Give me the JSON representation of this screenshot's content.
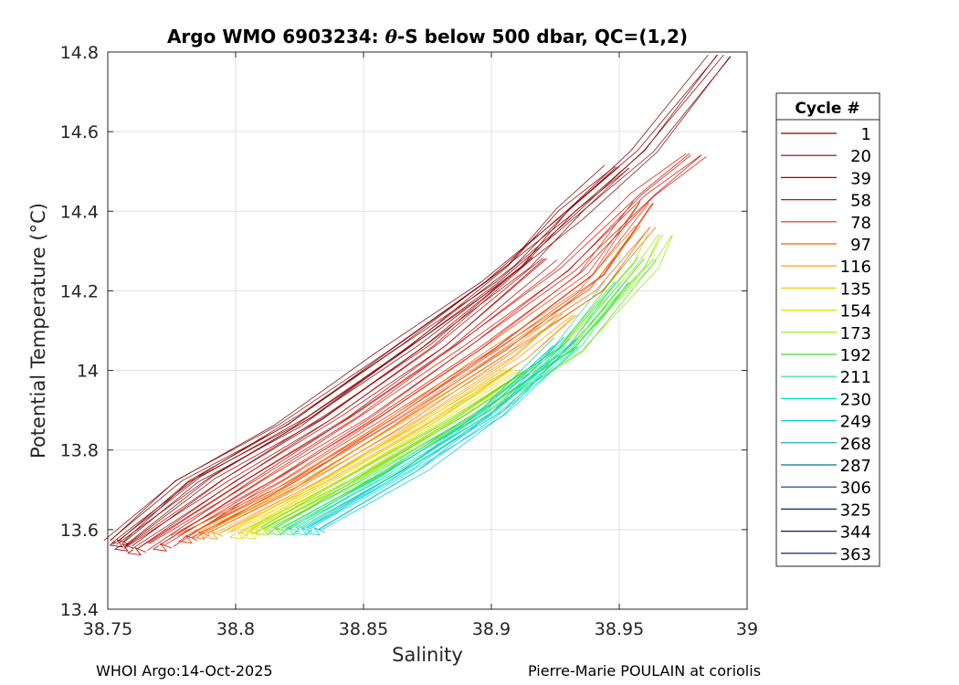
{
  "chart_data": {
    "type": "line",
    "title_prefix": "Argo WMO 6903234: ",
    "title_theta": "θ",
    "title_suffix": "-S below 500 dbar,  QC=(1,2)",
    "xlabel": "Salinity",
    "ylabel": "Potential Temperature (°C)",
    "xlim": [
      38.75,
      39
    ],
    "ylim": [
      13.4,
      14.8
    ],
    "xticks": [
      38.75,
      38.8,
      38.85,
      38.9,
      38.95,
      39
    ],
    "xtick_labels": [
      "38.75",
      "38.8",
      "38.85",
      "38.9",
      "38.95",
      "39"
    ],
    "yticks": [
      13.4,
      13.6,
      13.8,
      14,
      14.2,
      14.4,
      14.6,
      14.8
    ],
    "ytick_labels": [
      "13.4",
      "13.6",
      "13.8",
      "14",
      "14.2",
      "14.4",
      "14.6",
      "14.8"
    ],
    "grid": true,
    "legend_title": "Cycle #",
    "legend_position": "right",
    "series": [
      {
        "name": "1",
        "color": "#800000",
        "points": [
          [
            38.753,
            13.57
          ],
          [
            38.78,
            13.72
          ],
          [
            38.82,
            13.86
          ],
          [
            38.86,
            14.04
          ],
          [
            38.9,
            14.22
          ],
          [
            38.93,
            14.38
          ],
          [
            38.96,
            14.55
          ],
          [
            38.99,
            14.79
          ]
        ]
      },
      {
        "name": "20",
        "color": "#8c0000",
        "points": [
          [
            38.755,
            13.56
          ],
          [
            38.79,
            13.73
          ],
          [
            38.83,
            13.88
          ],
          [
            38.87,
            14.06
          ],
          [
            38.91,
            14.26
          ],
          [
            38.93,
            14.4
          ],
          [
            38.95,
            14.51
          ]
        ]
      },
      {
        "name": "39",
        "color": "#aa0000",
        "points": [
          [
            38.76,
            13.55
          ],
          [
            38.8,
            13.72
          ],
          [
            38.84,
            13.88
          ],
          [
            38.88,
            14.06
          ],
          [
            38.92,
            14.28
          ]
        ]
      },
      {
        "name": "58",
        "color": "#cc1000",
        "points": [
          [
            38.77,
            13.56
          ],
          [
            38.81,
            13.72
          ],
          [
            38.85,
            13.88
          ],
          [
            38.89,
            14.06
          ],
          [
            38.93,
            14.25
          ],
          [
            38.96,
            14.44
          ],
          [
            38.98,
            14.54
          ]
        ]
      },
      {
        "name": "78",
        "color": "#e03000",
        "points": [
          [
            38.78,
            13.58
          ],
          [
            38.82,
            13.72
          ],
          [
            38.86,
            13.88
          ],
          [
            38.9,
            14.05
          ],
          [
            38.94,
            14.24
          ],
          [
            38.96,
            14.42
          ]
        ]
      },
      {
        "name": "97",
        "color": "#ee6600",
        "points": [
          [
            38.785,
            13.59
          ],
          [
            38.82,
            13.7
          ],
          [
            38.86,
            13.86
          ],
          [
            38.9,
            14.03
          ],
          [
            38.94,
            14.2
          ],
          [
            38.96,
            14.36
          ]
        ]
      },
      {
        "name": "116",
        "color": "#f59a00",
        "points": [
          [
            38.79,
            13.59
          ],
          [
            38.83,
            13.72
          ],
          [
            38.87,
            13.87
          ],
          [
            38.91,
            14.03
          ],
          [
            38.93,
            14.14
          ]
        ]
      },
      {
        "name": "135",
        "color": "#f5cc00",
        "points": [
          [
            38.8,
            13.59
          ],
          [
            38.84,
            13.73
          ],
          [
            38.88,
            13.88
          ],
          [
            38.91,
            14.0
          ]
        ]
      },
      {
        "name": "154",
        "color": "#d6e600",
        "points": [
          [
            38.805,
            13.59
          ],
          [
            38.84,
            13.72
          ],
          [
            38.88,
            13.87
          ],
          [
            38.91,
            14.0
          ]
        ]
      },
      {
        "name": "173",
        "color": "#99e600",
        "points": [
          [
            38.81,
            13.6
          ],
          [
            38.85,
            13.73
          ],
          [
            38.89,
            13.88
          ],
          [
            38.93,
            14.05
          ],
          [
            38.96,
            14.26
          ],
          [
            38.967,
            14.34
          ]
        ]
      },
      {
        "name": "192",
        "color": "#44e033",
        "points": [
          [
            38.815,
            13.6
          ],
          [
            38.85,
            13.73
          ],
          [
            38.89,
            13.88
          ],
          [
            38.93,
            14.05
          ],
          [
            38.96,
            14.28
          ]
        ]
      },
      {
        "name": "211",
        "color": "#22e08a",
        "points": [
          [
            38.82,
            13.6
          ],
          [
            38.86,
            13.74
          ],
          [
            38.9,
            13.9
          ],
          [
            38.93,
            14.06
          ],
          [
            38.95,
            14.22
          ]
        ]
      },
      {
        "name": "230",
        "color": "#00e0cc",
        "points": [
          [
            38.825,
            13.6
          ],
          [
            38.86,
            13.73
          ],
          [
            38.9,
            13.89
          ],
          [
            38.93,
            14.06
          ]
        ]
      },
      {
        "name": "249",
        "color": "#00c8e0",
        "points": [
          [
            38.83,
            13.6
          ],
          [
            38.87,
            13.75
          ],
          [
            38.9,
            13.89
          ],
          [
            38.93,
            14.08
          ]
        ]
      },
      {
        "name": "268",
        "color": "#009fb0",
        "points": []
      },
      {
        "name": "287",
        "color": "#00709e",
        "points": []
      },
      {
        "name": "306",
        "color": "#004080",
        "points": []
      },
      {
        "name": "325",
        "color": "#002a70",
        "points": []
      },
      {
        "name": "344",
        "color": "#001a66",
        "points": []
      },
      {
        "name": "363",
        "color": "#000d55",
        "points": []
      }
    ]
  },
  "footer": {
    "left": "WHOI Argo:14-Oct-2025",
    "right": "Pierre-Marie POULAIN at coriolis"
  }
}
